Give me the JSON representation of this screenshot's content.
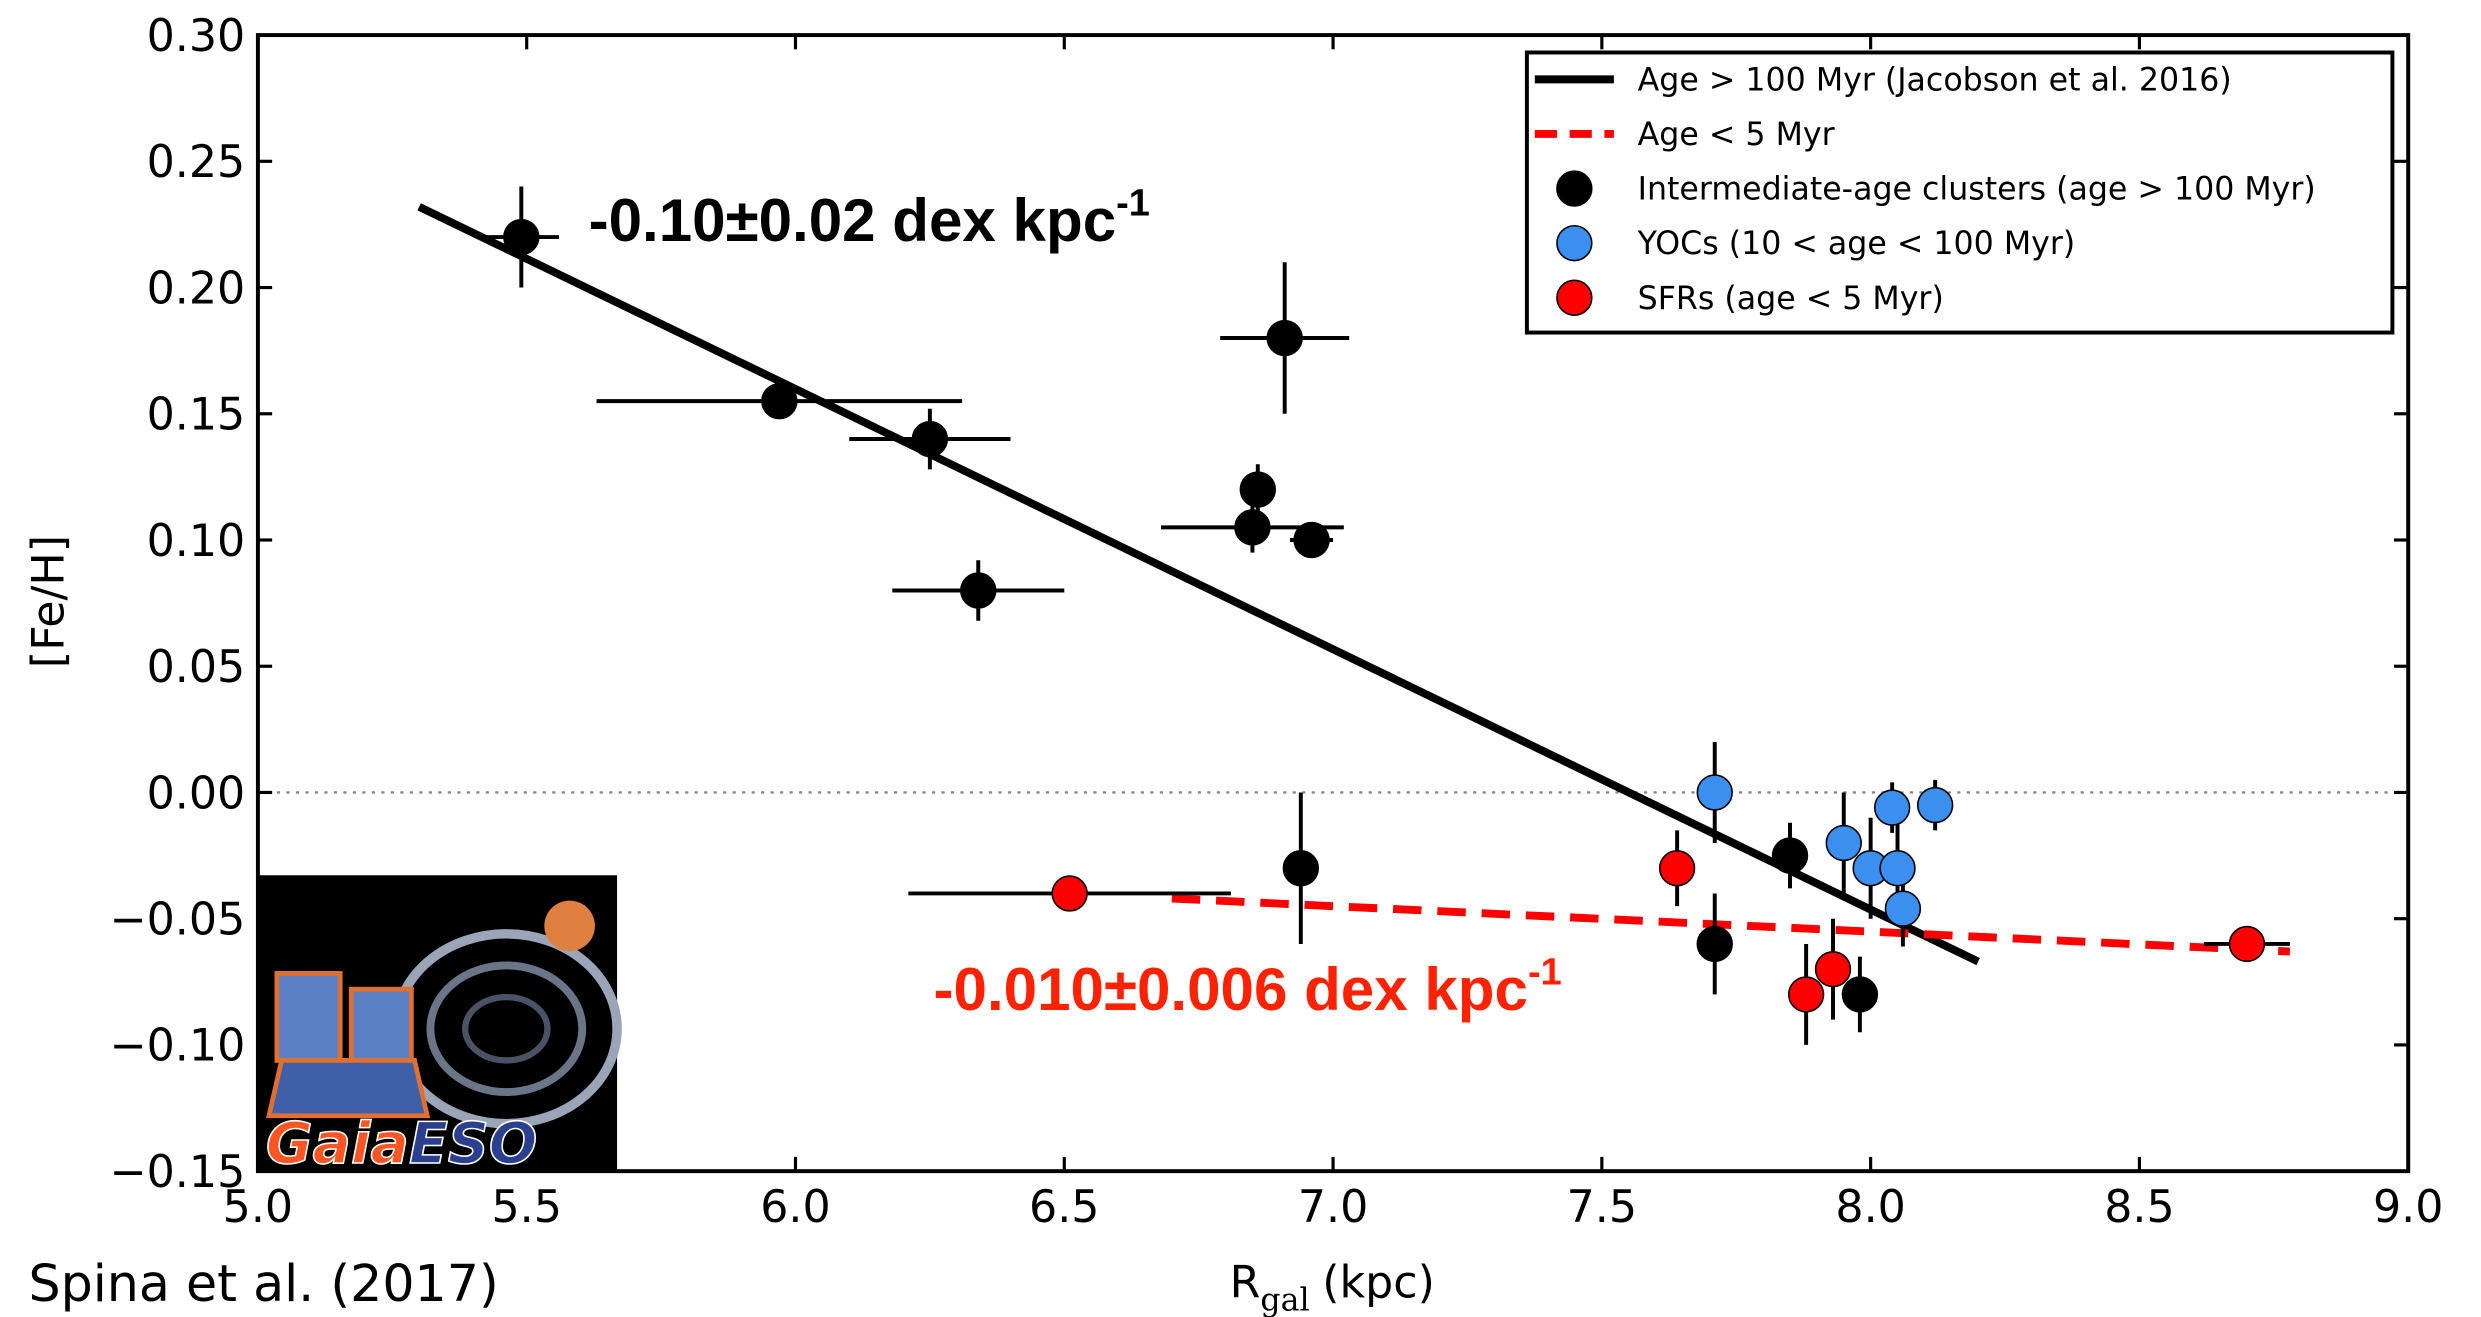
{
  "chart_data": {
    "type": "scatter",
    "xlabel": {
      "text": "R",
      "subscript": "gal",
      "unit": "(kpc)"
    },
    "ylabel": "[Fe/H]",
    "xlim": [
      5.0,
      9.0
    ],
    "ylim": [
      -0.15,
      0.3
    ],
    "xticks": [
      {
        "value": 5,
        "label": "5.0"
      },
      5.5,
      {
        "value": 6,
        "label": "6.0"
      },
      6.5,
      {
        "value": 7,
        "label": "7.0"
      },
      7.5,
      {
        "value": 8,
        "label": "8.0"
      },
      8.5,
      {
        "value": 9,
        "label": "9.0"
      }
    ],
    "yticks": [
      {
        "value": -0.15,
        "label": "−0.15"
      },
      {
        "value": -0.1,
        "label": "−0.10"
      },
      {
        "value": -0.05,
        "label": "−0.05"
      },
      {
        "value": 0,
        "label": "0.00"
      },
      {
        "value": 0.05,
        "label": "0.05"
      },
      {
        "value": 0.1,
        "label": "0.10"
      },
      {
        "value": 0.15,
        "label": "0.15"
      },
      {
        "value": 0.2,
        "label": "0.20"
      },
      {
        "value": 0.25,
        "label": "0.25"
      },
      {
        "value": 0.3,
        "label": "0.30"
      }
    ],
    "reference_line": {
      "y": 0,
      "style": "dotted",
      "color": "#888888"
    },
    "legend_position": "upper right",
    "series": [
      {
        "name": "Age > 100 Myr (Jacobson et al. 2016)",
        "type": "line",
        "color": "#000000",
        "dash": "solid",
        "x": [
          5.3,
          8.2
        ],
        "values": [
          0.232,
          -0.067
        ]
      },
      {
        "name": "Age < 5 Myr",
        "type": "line",
        "color": "#ff0000",
        "dash": "dashed",
        "x": [
          6.7,
          8.78
        ],
        "values": [
          -0.042,
          -0.063
        ]
      },
      {
        "name": "Intermediate-age clusters (age > 100 Myr)",
        "type": "scatter",
        "color": "#000000",
        "x": [
          5.49,
          5.97,
          6.25,
          6.34,
          6.91,
          6.86,
          6.85,
          6.96,
          6.94,
          7.71,
          7.85,
          7.98
        ],
        "values": [
          0.22,
          0.155,
          0.14,
          0.08,
          0.18,
          0.12,
          0.105,
          0.1,
          -0.03,
          -0.06,
          -0.025,
          -0.08
        ],
        "x_errors": [
          0.07,
          0.34,
          0.15,
          0.16,
          0.12,
          0.0,
          0.17,
          0.04,
          0.03,
          0.0,
          0.0,
          0.0
        ],
        "y_errors": [
          0.02,
          0.0,
          0.012,
          0.012,
          0.03,
          0.01,
          0.01,
          0.0,
          0.03,
          0.02,
          0.013,
          0.015
        ]
      },
      {
        "name": "YOCs (10 < age < 100 Myr)",
        "type": "scatter",
        "color": "#3a8fef",
        "x": [
          7.71,
          7.95,
          8.0,
          8.04,
          8.05,
          8.06,
          8.12
        ],
        "values": [
          0.0,
          -0.02,
          -0.03,
          -0.006,
          -0.03,
          -0.046,
          -0.005
        ],
        "x_errors": [
          0.0,
          0.0,
          0.0,
          0.0,
          0.0,
          0.0,
          0.0
        ],
        "y_errors": [
          0.02,
          0.02,
          0.02,
          0.01,
          0.02,
          0.015,
          0.01
        ]
      },
      {
        "name": "SFRs (age < 5 Myr)",
        "type": "scatter",
        "color": "#ff0000",
        "x": [
          6.51,
          7.64,
          7.88,
          7.93,
          8.7
        ],
        "values": [
          -0.04,
          -0.03,
          -0.08,
          -0.07,
          -0.06
        ],
        "x_errors": [
          0.3,
          0.0,
          0.0,
          0.0,
          0.08
        ],
        "y_errors": [
          0.005,
          0.015,
          0.02,
          0.02,
          0.0
        ]
      }
    ],
    "annotations": [
      {
        "text": "-0.10±0.02 dex kpc",
        "superscript": "-1",
        "color": "#000000"
      },
      {
        "text": "-0.010±0.006 dex kpc",
        "superscript": "-1",
        "color": "#ff2200"
      }
    ],
    "credit": "Spina et al. (2017)",
    "logo": {
      "text_1": "Gaia",
      "text_2": "ESO"
    }
  }
}
